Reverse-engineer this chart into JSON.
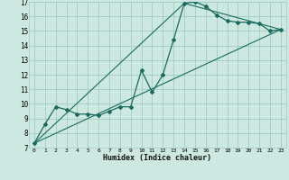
{
  "title": "",
  "xlabel": "Humidex (Indice chaleur)",
  "bg_color": "#cce8e0",
  "grid_color": "#9fccc4",
  "line_color": "#1a6b5e",
  "xlim": [
    -0.5,
    23.5
  ],
  "ylim": [
    7,
    17
  ],
  "xticks": [
    0,
    1,
    2,
    3,
    4,
    5,
    6,
    7,
    8,
    9,
    10,
    11,
    12,
    13,
    14,
    15,
    16,
    17,
    18,
    19,
    20,
    21,
    22,
    23
  ],
  "yticks": [
    7,
    8,
    9,
    10,
    11,
    12,
    13,
    14,
    15,
    16,
    17
  ],
  "line1_x": [
    0,
    1,
    2,
    3,
    4,
    5,
    6,
    7,
    8,
    9,
    10,
    11,
    12,
    13,
    14,
    15,
    16,
    17,
    18,
    19,
    20,
    21,
    22,
    23
  ],
  "line1_y": [
    7.3,
    8.6,
    9.8,
    9.6,
    9.3,
    9.3,
    9.2,
    9.5,
    9.8,
    9.8,
    12.3,
    10.8,
    12.0,
    14.4,
    16.9,
    17.0,
    16.7,
    16.1,
    15.7,
    15.6,
    15.6,
    15.5,
    15.0,
    15.1
  ],
  "line2_x": [
    0,
    23
  ],
  "line2_y": [
    7.3,
    15.1
  ],
  "line3_x": [
    0,
    14,
    23
  ],
  "line3_y": [
    7.3,
    16.9,
    15.1
  ]
}
